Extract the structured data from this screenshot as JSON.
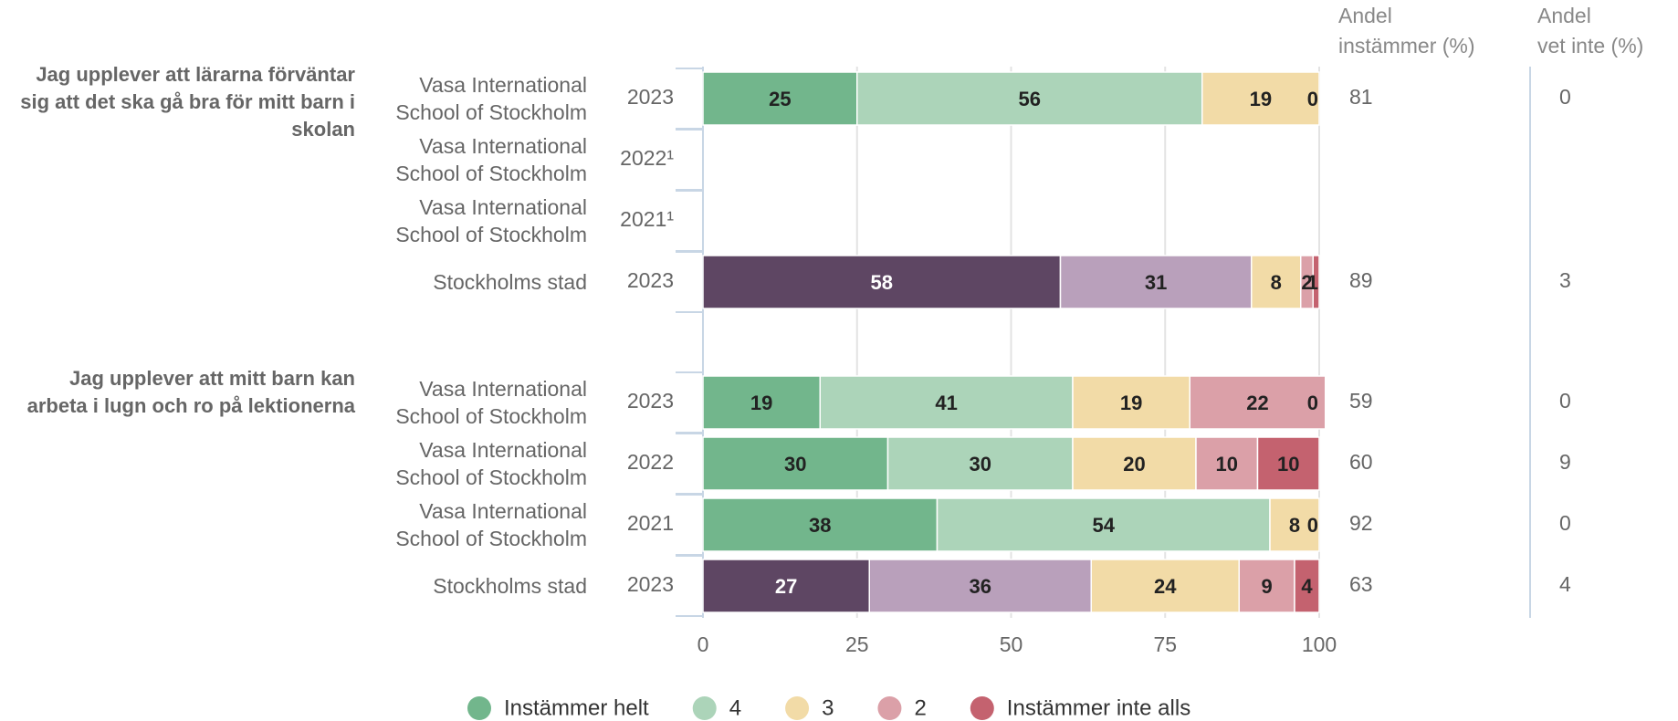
{
  "chart_data": {
    "type": "stacked-bar-horizontal",
    "xlim": [
      0,
      100
    ],
    "xticks": [
      0,
      25,
      50,
      75,
      100
    ],
    "grid": true,
    "columns": [
      {
        "lines": [
          "Andel",
          "instämmer (%)"
        ]
      },
      {
        "lines": [
          "Andel",
          "vet inte (%)"
        ]
      }
    ],
    "legend": [
      {
        "name": "Instämmer helt",
        "color": "#72b68c"
      },
      {
        "name": "4",
        "color": "#acd4b9"
      },
      {
        "name": "3",
        "color": "#f2dba7"
      },
      {
        "name": "2",
        "color": "#dba0a8"
      },
      {
        "name": "Instämmer inte alls",
        "color": "#c4626f"
      }
    ],
    "groups": [
      {
        "title": "Jag upplever att lärarna förväntar sig att det ska gå bra för mitt barn i skolan",
        "categories": [
          "Vasa International School of Stockholm",
          "Vasa International School of Stockholm",
          "Vasa International School of Stockholm",
          "Stockholms stad"
        ],
        "years": [
          "2023",
          "2022¹",
          "2021¹",
          "2023"
        ],
        "andel_instammer": [
          81,
          null,
          null,
          89
        ],
        "andel_vet_inte": [
          0,
          null,
          null,
          3
        ],
        "series": [
          {
            "name": "Instämmer helt",
            "colors": [
              "#72b68c",
              null,
              null,
              "#5e4663"
            ],
            "values": [
              25,
              null,
              null,
              58
            ]
          },
          {
            "name": "4",
            "colors": [
              "#acd4b9",
              null,
              null,
              "#b9a0bb"
            ],
            "values": [
              56,
              null,
              null,
              31
            ]
          },
          {
            "name": "3",
            "colors": [
              "#f2dba7",
              null,
              null,
              "#f2dba7"
            ],
            "values": [
              19,
              null,
              null,
              8
            ]
          },
          {
            "name": "2",
            "colors": [
              "#dba0a8",
              null,
              null,
              "#dba0a8"
            ],
            "values": [
              null,
              null,
              null,
              2
            ]
          },
          {
            "name": "Instämmer inte alls",
            "colors": [
              "#c4626f",
              null,
              null,
              "#c4626f"
            ],
            "values": [
              0,
              null,
              null,
              1
            ]
          }
        ]
      },
      {
        "title": "Jag upplever att mitt barn kan arbeta i lugn och ro på lektionerna",
        "categories": [
          "Vasa International School of Stockholm",
          "Vasa International School of Stockholm",
          "Vasa International School of Stockholm",
          "Stockholms stad"
        ],
        "years": [
          "2023",
          "2022",
          "2021",
          "2023"
        ],
        "andel_instammer": [
          59,
          60,
          92,
          63
        ],
        "andel_vet_inte": [
          0,
          9,
          0,
          4
        ],
        "series": [
          {
            "name": "Instämmer helt",
            "colors": [
              "#72b68c",
              "#72b68c",
              "#72b68c",
              "#5e4663"
            ],
            "values": [
              19,
              30,
              38,
              27
            ]
          },
          {
            "name": "4",
            "colors": [
              "#acd4b9",
              "#acd4b9",
              "#acd4b9",
              "#b9a0bb"
            ],
            "values": [
              41,
              30,
              54,
              36
            ]
          },
          {
            "name": "3",
            "colors": [
              "#f2dba7",
              "#f2dba7",
              "#f2dba7",
              "#f2dba7"
            ],
            "values": [
              19,
              20,
              8,
              24
            ]
          },
          {
            "name": "2",
            "colors": [
              "#dba0a8",
              "#dba0a8",
              "#dba0a8",
              "#dba0a8"
            ],
            "values": [
              22,
              10,
              null,
              9
            ]
          },
          {
            "name": "Instämmer inte alls",
            "colors": [
              "#c4626f",
              "#c4626f",
              "#c4626f",
              "#c4626f"
            ],
            "values": [
              0,
              10,
              0,
              4
            ]
          }
        ]
      }
    ]
  }
}
